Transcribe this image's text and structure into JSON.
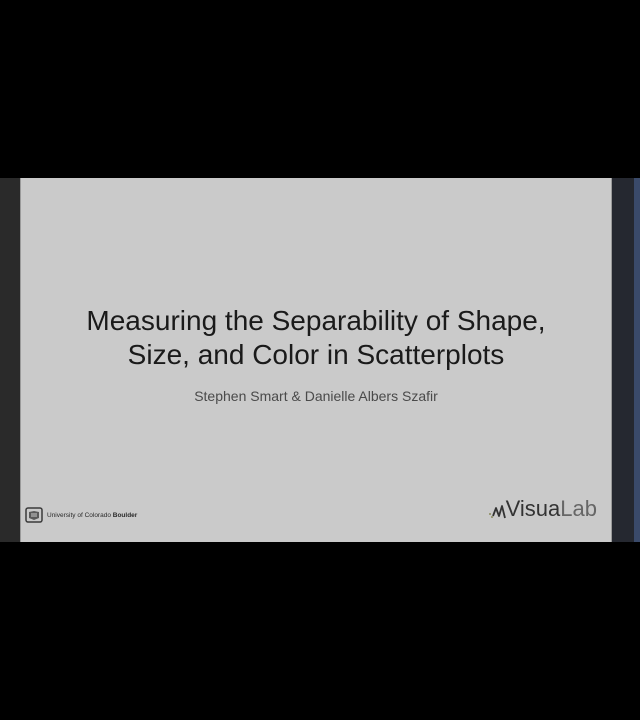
{
  "slide": {
    "title_line1": "Measuring the Separability of Shape,",
    "title_line2": "Size, and Color in Scatterplots",
    "authors": "Stephen Smart & Danielle Albers Szafir"
  },
  "logos": {
    "university_prefix": "University of Colorado",
    "university_bold": "Boulder",
    "lab_main": "Visua",
    "lab_suffix": "Lab"
  },
  "colors": {
    "slide_background": "#cacaca",
    "page_background": "#000000",
    "title_text": "#1a1a1a"
  }
}
